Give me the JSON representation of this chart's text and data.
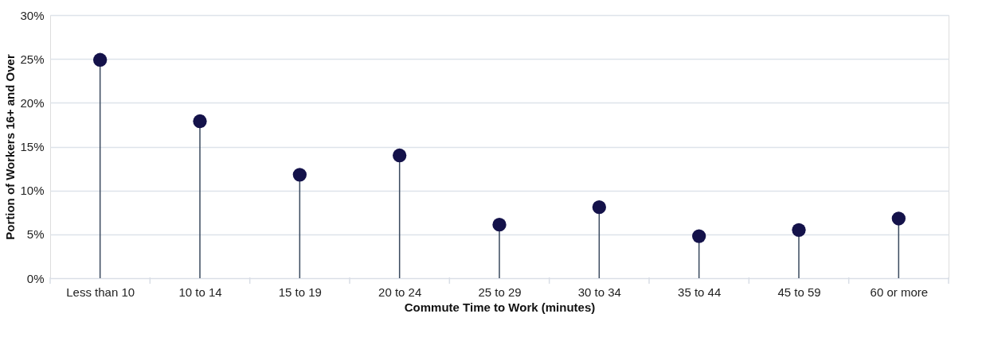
{
  "chart_data": {
    "type": "lollipop",
    "xlabel": "Commute Time to Work (minutes)",
    "ylabel": "Portion of Workers 16+ and Over",
    "categories": [
      "Less than 10",
      "10 to 14",
      "15 to 19",
      "20 to 24",
      "25 to 29",
      "30 to 34",
      "35 to 44",
      "45 to 59",
      "60 or more"
    ],
    "values": [
      24.9,
      17.9,
      11.8,
      14.0,
      6.1,
      8.1,
      4.8,
      5.5,
      6.8
    ],
    "color": "#14124a",
    "ylim": [
      0,
      30
    ],
    "yticks": [
      {
        "value": 0,
        "label": "0%"
      },
      {
        "value": 5,
        "label": "5%"
      },
      {
        "value": 10,
        "label": "10%"
      },
      {
        "value": 15,
        "label": "15%"
      },
      {
        "value": 20,
        "label": "20%"
      },
      {
        "value": 25,
        "label": "25%"
      },
      {
        "value": 30,
        "label": "30%"
      }
    ],
    "grid": "y",
    "legend": false,
    "marker": "circle"
  }
}
